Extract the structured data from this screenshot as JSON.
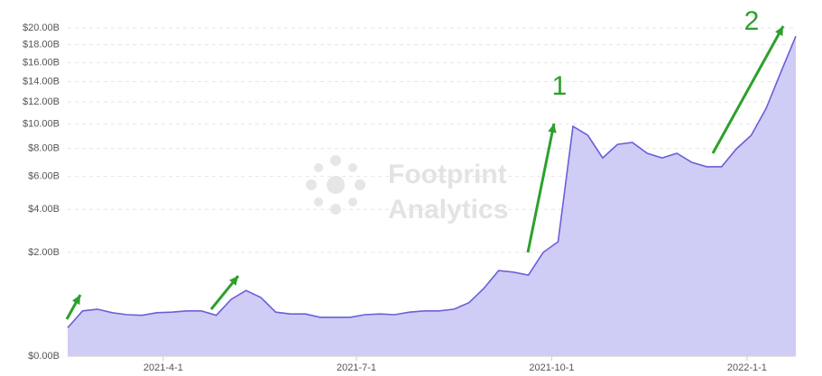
{
  "chart_data": {
    "type": "area",
    "scale": "sqrt",
    "color": "#6a5fd8",
    "fill": "#cfcdf5",
    "grid": true,
    "ylim": [
      0,
      20
    ],
    "yticks": [
      {
        "value": 0,
        "label": "$0.00B"
      },
      {
        "value": 2,
        "label": "$2.00B"
      },
      {
        "value": 4,
        "label": "$4.00B"
      },
      {
        "value": 6,
        "label": "$6.00B"
      },
      {
        "value": 8,
        "label": "$8.00B"
      },
      {
        "value": 10,
        "label": "$10.00B"
      },
      {
        "value": 12,
        "label": "$12.00B"
      },
      {
        "value": 14,
        "label": "$14.00B"
      },
      {
        "value": 16,
        "label": "$16.00B"
      },
      {
        "value": 18,
        "label": "$18.00B"
      },
      {
        "value": 20,
        "label": "$20.00B"
      }
    ],
    "xlim": [
      "2021-02-15",
      "2022-01-24"
    ],
    "xticks": [
      {
        "value": "2021-04-01",
        "label": "2021-4-1"
      },
      {
        "value": "2021-07-01",
        "label": "2021-7-1"
      },
      {
        "value": "2021-10-01",
        "label": "2021-10-1"
      },
      {
        "value": "2022-01-01",
        "label": "2022-1-1"
      }
    ],
    "x": [
      "2021-02-15",
      "2021-02-22",
      "2021-03-01",
      "2021-03-08",
      "2021-03-15",
      "2021-03-22",
      "2021-03-29",
      "2021-04-05",
      "2021-04-12",
      "2021-04-19",
      "2021-04-26",
      "2021-05-03",
      "2021-05-10",
      "2021-05-17",
      "2021-05-24",
      "2021-05-31",
      "2021-06-07",
      "2021-06-14",
      "2021-06-21",
      "2021-06-28",
      "2021-07-05",
      "2021-07-12",
      "2021-07-19",
      "2021-07-26",
      "2021-08-02",
      "2021-08-09",
      "2021-08-16",
      "2021-08-23",
      "2021-08-30",
      "2021-09-06",
      "2021-09-13",
      "2021-09-20",
      "2021-09-27",
      "2021-10-04",
      "2021-10-11",
      "2021-10-18",
      "2021-10-25",
      "2021-11-01",
      "2021-11-08",
      "2021-11-15",
      "2021-11-22",
      "2021-11-29",
      "2021-12-06",
      "2021-12-13",
      "2021-12-20",
      "2021-12-27",
      "2022-01-03",
      "2022-01-10",
      "2022-01-17",
      "2022-01-24"
    ],
    "values": [
      0.15,
      0.38,
      0.41,
      0.35,
      0.32,
      0.31,
      0.35,
      0.36,
      0.38,
      0.38,
      0.31,
      0.6,
      0.8,
      0.64,
      0.36,
      0.33,
      0.33,
      0.28,
      0.28,
      0.28,
      0.32,
      0.33,
      0.32,
      0.36,
      0.38,
      0.38,
      0.41,
      0.53,
      0.85,
      1.36,
      1.31,
      1.22,
      2.0,
      2.43,
      9.81,
      9.06,
      7.3,
      8.33,
      8.48,
      7.64,
      7.3,
      7.64,
      6.98,
      6.66,
      6.66,
      7.98,
      9.06,
      11.4,
      15.0,
      19.0
    ],
    "annotations": [
      "1",
      "2"
    ],
    "watermark": [
      "Footprint",
      "Analytics"
    ]
  }
}
